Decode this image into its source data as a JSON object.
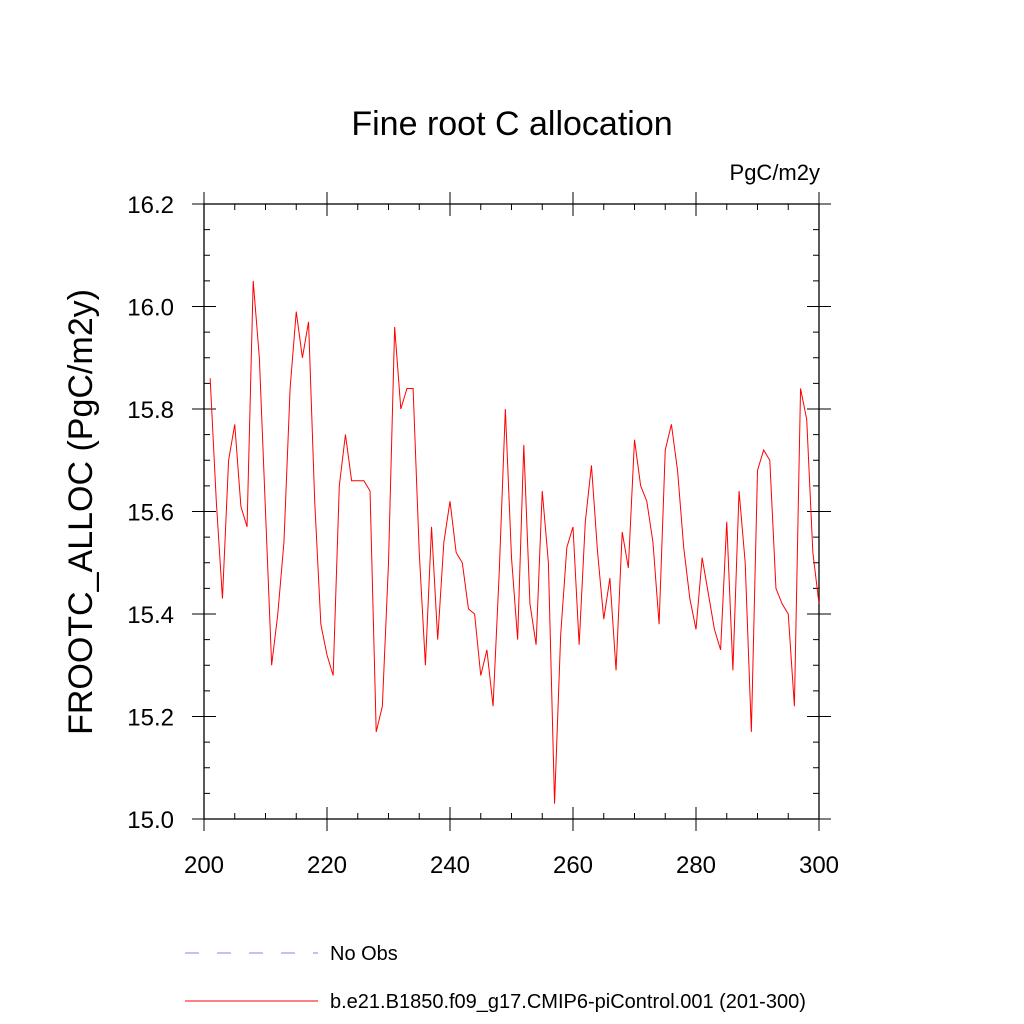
{
  "chart_data": {
    "type": "line",
    "title": "Fine root C allocation",
    "units_label": "PgC/m2y",
    "xlabel": "",
    "ylabel": "FROOTC_ALLOC  (PgC/m2y)",
    "xlim": [
      200,
      300
    ],
    "ylim": [
      15.0,
      16.2
    ],
    "x_ticks": [
      200,
      220,
      240,
      260,
      280,
      300
    ],
    "x_tick_labels": [
      "200",
      "220",
      "240",
      "260",
      "280",
      "300"
    ],
    "y_ticks": [
      15.0,
      15.2,
      15.4,
      15.6,
      15.8,
      16.0,
      16.2
    ],
    "y_tick_labels": [
      "15.0",
      "15.2",
      "15.4",
      "15.6",
      "15.8",
      "16.0",
      "16.2"
    ],
    "grid": false,
    "legend": {
      "position": "bottom",
      "entries": [
        {
          "label": "No Obs",
          "color": "#8080ff",
          "style": "dashed"
        },
        {
          "label": "b.e21.B1850.f09_g17.CMIP6-piControl.001 (201-300)",
          "color": "#ff0000",
          "style": "solid"
        }
      ]
    },
    "series": [
      {
        "name": "b.e21.B1850.f09_g17.CMIP6-piControl.001 (201-300)",
        "color": "#ff0000",
        "x": [
          201,
          202,
          203,
          204,
          205,
          206,
          207,
          208,
          209,
          210,
          211,
          212,
          213,
          214,
          215,
          216,
          217,
          218,
          219,
          220,
          221,
          222,
          223,
          224,
          225,
          226,
          227,
          228,
          229,
          230,
          231,
          232,
          233,
          234,
          235,
          236,
          237,
          238,
          239,
          240,
          241,
          242,
          243,
          244,
          245,
          246,
          247,
          248,
          249,
          250,
          251,
          252,
          253,
          254,
          255,
          256,
          257,
          258,
          259,
          260,
          261,
          262,
          263,
          264,
          265,
          266,
          267,
          268,
          269,
          270,
          271,
          272,
          273,
          274,
          275,
          276,
          277,
          278,
          279,
          280,
          281,
          282,
          283,
          284,
          285,
          286,
          287,
          288,
          289,
          290,
          291,
          292,
          293,
          294,
          295,
          296,
          297,
          298,
          299,
          300
        ],
        "values": [
          15.86,
          15.62,
          15.43,
          15.7,
          15.77,
          15.61,
          15.57,
          16.05,
          15.9,
          15.6,
          15.3,
          15.4,
          15.54,
          15.84,
          15.99,
          15.9,
          15.97,
          15.62,
          15.38,
          15.32,
          15.28,
          15.65,
          15.75,
          15.66,
          15.66,
          15.66,
          15.64,
          15.17,
          15.22,
          15.5,
          15.96,
          15.8,
          15.84,
          15.84,
          15.52,
          15.3,
          15.57,
          15.35,
          15.54,
          15.62,
          15.52,
          15.5,
          15.41,
          15.4,
          15.28,
          15.33,
          15.22,
          15.48,
          15.8,
          15.51,
          15.35,
          15.73,
          15.42,
          15.34,
          15.64,
          15.5,
          15.03,
          15.36,
          15.53,
          15.57,
          15.34,
          15.58,
          15.69,
          15.52,
          15.39,
          15.47,
          15.29,
          15.56,
          15.49,
          15.74,
          15.65,
          15.62,
          15.54,
          15.38,
          15.72,
          15.77,
          15.68,
          15.53,
          15.43,
          15.37,
          15.51,
          15.44,
          15.37,
          15.33,
          15.58,
          15.29,
          15.64,
          15.5,
          15.17,
          15.68,
          15.72,
          15.7,
          15.45,
          15.42,
          15.4,
          15.22,
          15.84,
          15.78,
          15.52,
          15.42
        ]
      }
    ]
  }
}
